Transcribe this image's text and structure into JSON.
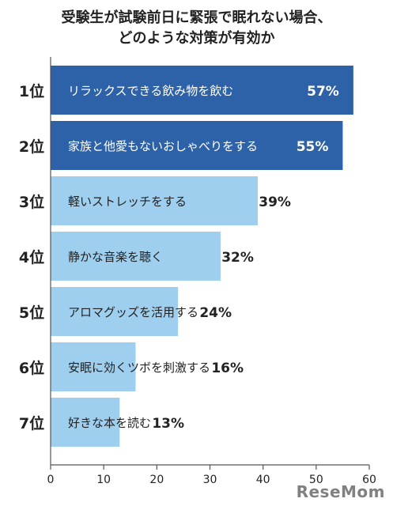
{
  "title_lines": [
    "受験生が試験前日に緊張で眠れない場合、",
    "どのような対策が有効か"
  ],
  "chart_data": {
    "type": "bar",
    "orientation": "horizontal",
    "ranks": [
      "1位",
      "2位",
      "3位",
      "4位",
      "5位",
      "6位",
      "7位"
    ],
    "categories": [
      "リラックスできる飲み物を飲む",
      "家族と他愛もないおしゃべりをする",
      "軽いストレッチをする",
      "静かな音楽を聴く",
      "アロマグッズを活用する",
      "安眠に効くツボを刺激する",
      "好きな本を読む"
    ],
    "values": [
      57,
      55,
      39,
      32,
      24,
      16,
      13
    ],
    "value_labels": [
      "57%",
      "55%",
      "39%",
      "32%",
      "24%",
      "16%",
      "13%"
    ],
    "xlim": [
      0,
      60
    ],
    "xticks": [
      0,
      10,
      20,
      30,
      40,
      50,
      60
    ],
    "xtick_labels": [
      "0",
      "10",
      "20",
      "30",
      "40",
      "50",
      "60"
    ],
    "colors": {
      "top": "#2e62a8",
      "rest": "#9fcfee",
      "top_text": "#ffffff",
      "rest_text": "#222222",
      "axis": "#555555"
    },
    "highlight_top_n": 2,
    "grid": false
  },
  "watermark": "ReseMom"
}
